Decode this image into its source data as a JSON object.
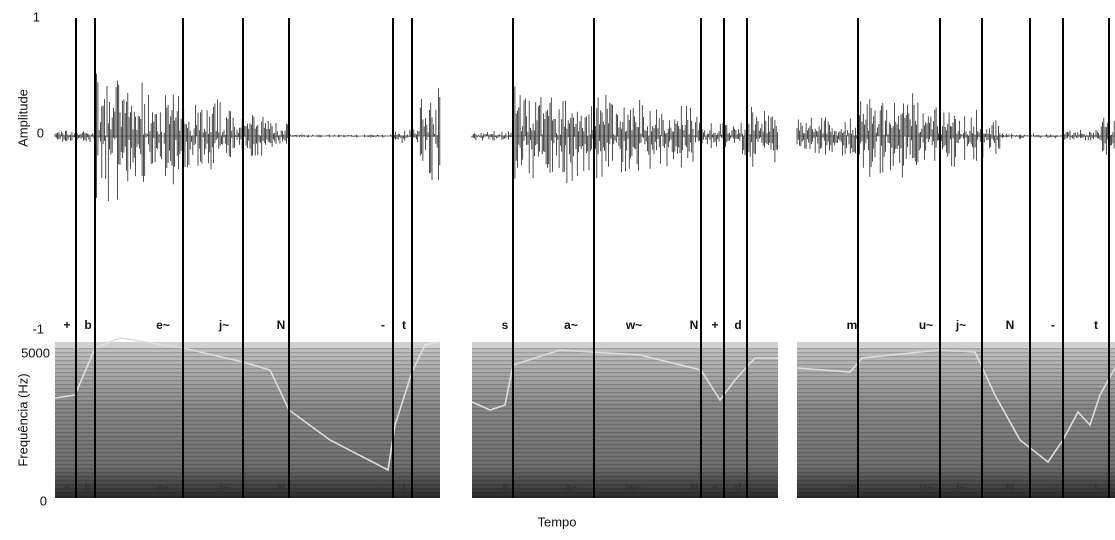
{
  "axes": {
    "amplitude_label": "Amplitude",
    "frequency_label": "Frequência (Hz)",
    "time_label": "Tempo",
    "amplitude_ticks": [
      "1",
      "0",
      "-1"
    ],
    "frequency_ticks": [
      "5000",
      "0"
    ]
  },
  "panels": [
    {
      "segments": [
        "+",
        "b",
        "e~",
        "j~",
        "N",
        "-",
        "t"
      ]
    },
    {
      "segments": [
        "s",
        "a~",
        "w~",
        "N",
        "+",
        "d"
      ]
    },
    {
      "segments": [
        "m",
        "u~",
        "j~",
        "N",
        "-",
        "t"
      ]
    }
  ]
}
